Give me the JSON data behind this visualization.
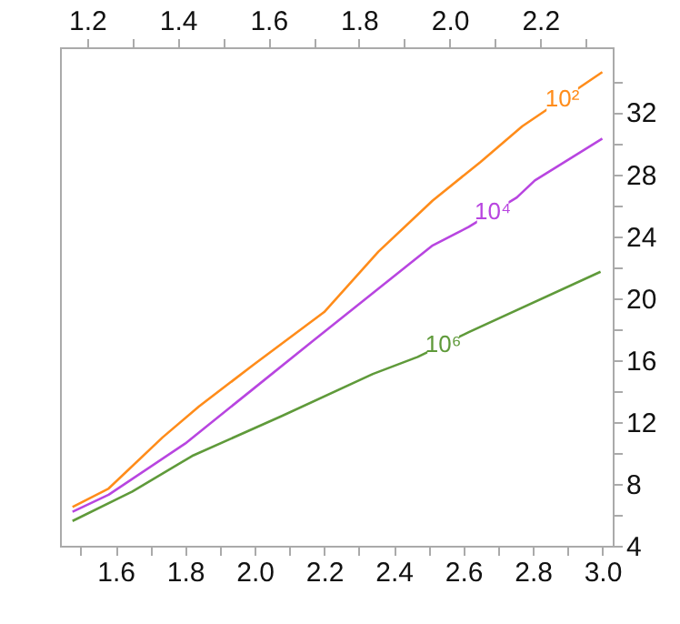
{
  "chart_data": {
    "type": "line",
    "xlim": [
      1.44,
      3.03
    ],
    "xticks": [
      {
        "value": 1.5,
        "label": null
      },
      1.6,
      {
        "value": 1.7,
        "label": null
      },
      1.8,
      {
        "value": 1.9,
        "label": null
      },
      {
        "value": 2.0,
        "label": "2.0"
      },
      {
        "value": 2.1,
        "label": null
      },
      2.2,
      {
        "value": 2.3,
        "label": null
      },
      2.4,
      {
        "value": 2.5,
        "label": null
      },
      2.6,
      {
        "value": 2.7,
        "label": null
      },
      2.8,
      {
        "value": 2.9,
        "label": null
      },
      {
        "value": 3.0,
        "label": "3.0"
      }
    ],
    "x2lim": [
      1.14,
      2.36
    ],
    "x2ticks": [
      1.2,
      {
        "value": 1.3,
        "label": null
      },
      1.4,
      {
        "value": 1.5,
        "label": null
      },
      1.6,
      {
        "value": 1.7,
        "label": null
      },
      1.8,
      {
        "value": 1.9,
        "label": null
      },
      {
        "value": 2.0,
        "label": "2.0"
      },
      {
        "value": 2.1,
        "label": null
      },
      2.2,
      {
        "value": 2.3,
        "label": null
      }
    ],
    "ylim": [
      4,
      36.2
    ],
    "yticks": [
      4,
      {
        "value": 6,
        "label": null
      },
      8,
      {
        "value": 10,
        "label": null
      },
      12,
      {
        "value": 14,
        "label": null
      },
      16,
      {
        "value": 18,
        "label": null
      },
      20,
      {
        "value": 22,
        "label": null
      },
      24,
      {
        "value": 26,
        "label": null
      },
      28,
      {
        "value": 30,
        "label": null
      },
      32,
      {
        "value": 34,
        "label": null
      }
    ],
    "grid": false,
    "series": [
      {
        "name": "10²",
        "color": "#ff8c1a",
        "x": [
          1.476,
          1.58,
          1.735,
          1.84,
          1.994,
          2.2,
          2.356,
          2.512,
          2.65,
          2.77,
          3.0
        ],
        "values": [
          6.5,
          7.7,
          11.0,
          13.0,
          15.65,
          19.1,
          23.0,
          26.3,
          28.8,
          31.1,
          34.6
        ]
      },
      {
        "name": "10⁴",
        "color": "#b845e0",
        "x": [
          1.476,
          1.58,
          1.8,
          1.994,
          2.166,
          2.339,
          2.512,
          2.616,
          2.754,
          2.806,
          3.0
        ],
        "values": [
          6.2,
          7.3,
          10.6,
          14.1,
          17.2,
          20.3,
          23.4,
          24.6,
          26.5,
          27.6,
          30.3
        ]
      },
      {
        "name": "10⁶",
        "color": "#5f9a3a",
        "x": [
          1.476,
          1.648,
          1.82,
          2.08,
          2.34,
          2.469,
          2.616,
          2.995
        ],
        "values": [
          5.6,
          7.5,
          9.8,
          12.4,
          15.1,
          16.2,
          17.8,
          21.7
        ]
      }
    ]
  }
}
